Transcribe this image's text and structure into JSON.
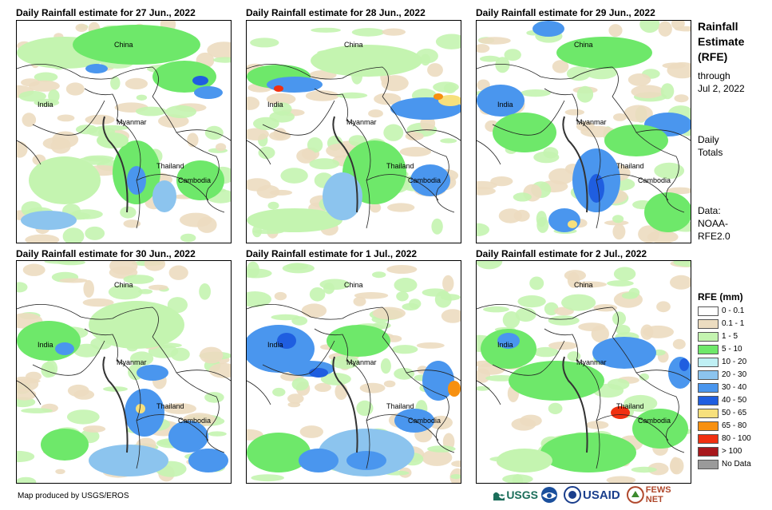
{
  "panels": [
    {
      "title": "Daily Rainfall estimate for 27 Jun., 2022"
    },
    {
      "title": "Daily Rainfall estimate for 28 Jun., 2022"
    },
    {
      "title": "Daily Rainfall estimate for 29 Jun., 2022"
    },
    {
      "title": "Daily Rainfall estimate for 30 Jun., 2022"
    },
    {
      "title": "Daily Rainfall estimate for 1 Jul., 2022"
    },
    {
      "title": "Daily Rainfall estimate for 2 Jul., 2022"
    }
  ],
  "map_labels": {
    "china": "China",
    "india": "India",
    "myanmar": "Myanmar",
    "thailand": "Thailand",
    "cambodia": "Cambodia"
  },
  "side": {
    "title_line1": "Rainfall",
    "title_line2": "Estimate",
    "title_line3": "(RFE)",
    "through": "through",
    "date": "Jul 2, 2022",
    "daily": "Daily",
    "totals": "Totals",
    "data_label": "Data:",
    "data_source1": "NOAA-",
    "data_source2": "RFE2.0"
  },
  "legend": {
    "title": "RFE (mm)",
    "items": [
      {
        "label": "0 - 0.1",
        "color": "#ffffff"
      },
      {
        "label": "0.1 - 1",
        "color": "#ecdcc0"
      },
      {
        "label": "1 - 5",
        "color": "#c4f4b0"
      },
      {
        "label": "5 - 10",
        "color": "#6ee86a"
      },
      {
        "label": "10 - 20",
        "color": "#bff0f4"
      },
      {
        "label": "20 - 30",
        "color": "#8cc4ee"
      },
      {
        "label": "30 - 40",
        "color": "#4a96ee"
      },
      {
        "label": "40 - 50",
        "color": "#1f5ee0"
      },
      {
        "label": "50 - 65",
        "color": "#f7e07c"
      },
      {
        "label": "65 - 80",
        "color": "#f79010"
      },
      {
        "label": "80 - 100",
        "color": "#f03010"
      },
      {
        "label": "> 100",
        "color": "#a8181c"
      },
      {
        "label": "No Data",
        "color": "#9a9a9a"
      }
    ]
  },
  "footer": "Map produced by USGS/EROS",
  "logos": {
    "usgs": "USGS",
    "usaid": "USAID",
    "fewsnet": "FEWS NET"
  }
}
